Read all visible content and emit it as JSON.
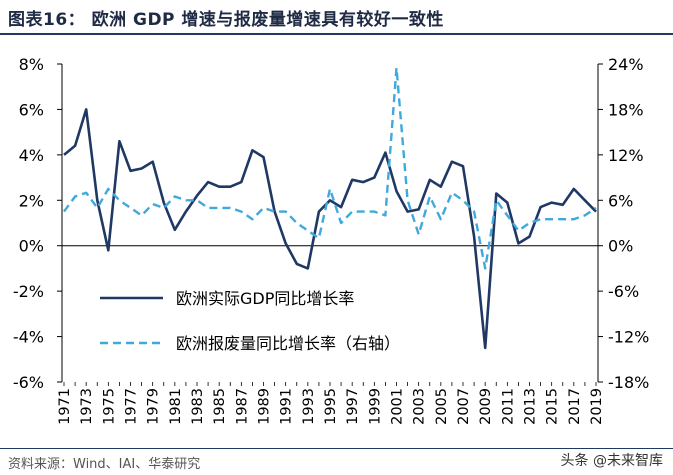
{
  "title": "图表16：   欧洲 GDP 增速与报废量增速具有较好一致性",
  "source": "资料来源：Wind、IAI、华泰研究",
  "watermark": "头条 @未来智库",
  "colors": {
    "gdp": "#1f3864",
    "scrap": "#3fa9dc",
    "title": "#1f3864"
  },
  "chart_data": {
    "type": "line",
    "title": "欧洲 GDP 增速与报废量增速具有较好一致性",
    "x": [
      1971,
      1972,
      1973,
      1974,
      1975,
      1976,
      1977,
      1978,
      1979,
      1980,
      1981,
      1982,
      1983,
      1984,
      1985,
      1986,
      1987,
      1988,
      1989,
      1990,
      1991,
      1992,
      1993,
      1994,
      1995,
      1996,
      1997,
      1998,
      1999,
      2000,
      2001,
      2002,
      2003,
      2004,
      2005,
      2006,
      2007,
      2008,
      2009,
      2010,
      2011,
      2012,
      2013,
      2014,
      2015,
      2016,
      2017,
      2018,
      2019
    ],
    "x_tick_labels": [
      "1971",
      "1973",
      "1975",
      "1977",
      "1979",
      "1981",
      "1983",
      "1985",
      "1987",
      "1989",
      "1991",
      "1993",
      "1995",
      "1997",
      "1999",
      "2001",
      "2003",
      "2005",
      "2007",
      "2009",
      "2011",
      "2013",
      "2015",
      "2017",
      "2019"
    ],
    "y_left": {
      "ylim": [
        -6,
        8
      ],
      "ticks": [
        "-6%",
        "-4%",
        "-2%",
        "0%",
        "2%",
        "4%",
        "6%",
        "8%"
      ],
      "values": [
        -6,
        -4,
        -2,
        0,
        2,
        4,
        6,
        8
      ]
    },
    "y_right": {
      "ylim": [
        -18,
        24
      ],
      "ticks": [
        "-18%",
        "-12%",
        "-6%",
        "0%",
        "6%",
        "12%",
        "18%",
        "24%"
      ],
      "values": [
        -18,
        -12,
        -6,
        0,
        6,
        12,
        18,
        24
      ]
    },
    "series": [
      {
        "name": "欧洲实际GDP同比增长率",
        "axis": "left",
        "style": "solid",
        "values": [
          4.0,
          4.4,
          6.0,
          2.0,
          -0.2,
          4.6,
          3.3,
          3.4,
          3.7,
          1.9,
          0.7,
          1.5,
          2.2,
          2.8,
          2.6,
          2.6,
          2.8,
          4.2,
          3.9,
          1.5,
          0.1,
          -0.8,
          -1.0,
          1.5,
          2.0,
          1.7,
          2.9,
          2.8,
          3.0,
          4.1,
          2.4,
          1.5,
          1.6,
          2.9,
          2.6,
          3.7,
          3.5,
          0.4,
          -4.5,
          2.3,
          1.9,
          0.1,
          0.4,
          1.7,
          1.9,
          1.8,
          2.5,
          2.0,
          1.5
        ]
      },
      {
        "name": "欧洲报废量同比增长率（右轴）",
        "axis": "right",
        "style": "dashed",
        "values": [
          4.5,
          6.5,
          7.0,
          5.0,
          7.5,
          6.0,
          5.0,
          4.0,
          5.5,
          5.0,
          6.5,
          6.0,
          6.0,
          5.0,
          5.0,
          5.0,
          4.5,
          3.5,
          5.0,
          4.5,
          4.5,
          3.0,
          2.0,
          1.0,
          7.5,
          3.0,
          4.5,
          4.5,
          4.5,
          4.0,
          23.5,
          6.0,
          1.5,
          6.5,
          3.5,
          7.0,
          6.0,
          4.5,
          -3.0,
          6.0,
          4.0,
          2.0,
          3.0,
          3.5,
          3.5,
          3.5,
          3.5,
          4.0,
          5.0
        ]
      }
    ],
    "legend": {
      "placement": "lower-left",
      "entries": [
        "欧洲实际GDP同比增长率",
        "欧洲报废量同比增长率（右轴）"
      ]
    }
  }
}
